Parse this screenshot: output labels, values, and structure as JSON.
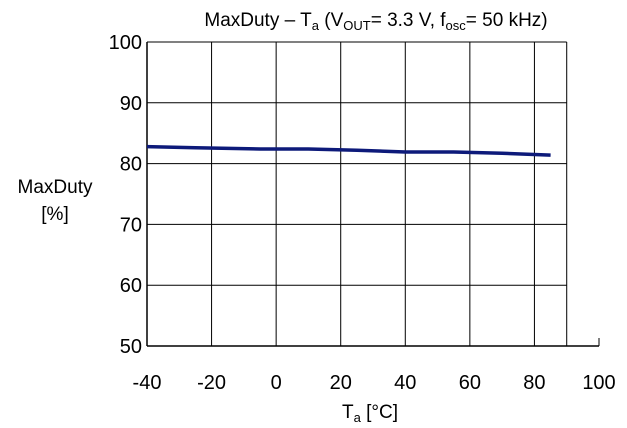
{
  "chart_data": {
    "type": "line",
    "title": {
      "part1": "MaxDuty – T",
      "part1_sub": "a",
      "part2": " (V",
      "part2_sub": "OUT",
      "part3": "= 3.3 V, f",
      "part3_sub": "osc",
      "part4": "= 50 kHz)"
    },
    "xlabel": {
      "main": "T",
      "sub": "a",
      "unit": " [°C]"
    },
    "ylabel": {
      "line1": "MaxDuty",
      "line2": "[%]"
    },
    "xlim": [
      -40,
      100
    ],
    "ylim": [
      50,
      100
    ],
    "xticks": [
      -40,
      -20,
      0,
      20,
      40,
      60,
      80,
      100
    ],
    "yticks": [
      50,
      60,
      70,
      80,
      90,
      100
    ],
    "grid": true,
    "series": [
      {
        "color": "#0d1a7a",
        "x": [
          -40,
          -25,
          -5,
          10,
          25,
          40,
          55,
          70,
          85
        ],
        "y": [
          82.8,
          82.6,
          82.4,
          82.4,
          82.2,
          81.9,
          81.9,
          81.7,
          81.4
        ]
      }
    ]
  }
}
